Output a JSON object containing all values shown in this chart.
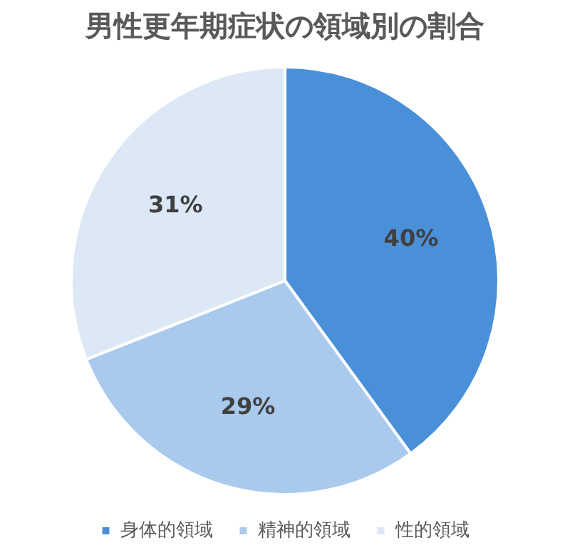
{
  "chart_data": {
    "type": "pie",
    "title": "男性更年期症状の領域別の割合",
    "categories": [
      "身体的領域",
      "精神的領域",
      "性的領域"
    ],
    "values": [
      40,
      29,
      31
    ],
    "colors": [
      "#4a90d9",
      "#a9c9ed",
      "#dce8f6"
    ],
    "value_labels": [
      "40%",
      "29%",
      "31%"
    ],
    "legend": "bottom"
  }
}
